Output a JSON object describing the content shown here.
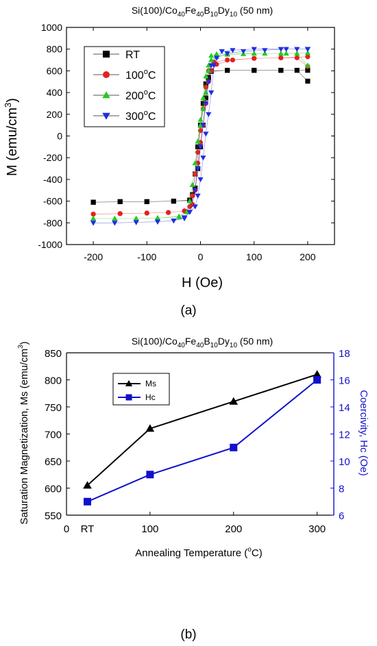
{
  "figure": {
    "panel_a_caption": "(a)",
    "panel_b_caption": "(b)"
  },
  "chart_data": [
    {
      "type": "scatter",
      "title": {
        "base": "Si(100)/Co",
        "sub1": "40",
        "t2": "Fe",
        "sub2": "40",
        "t3": "B",
        "sub3": "10",
        "t4": "Dy",
        "sub4": "10",
        "tail": " (50 nm)"
      },
      "xlabel": "H (Oe)",
      "ylabel": {
        "main": "M",
        "units": "(emu/cm",
        "sup": "3",
        "close": ")"
      },
      "xlim": [
        -250,
        250
      ],
      "ylim": [
        -1000,
        1000
      ],
      "xticks": [
        "-200",
        "-100",
        "0",
        "100",
        "200"
      ],
      "yticks": [
        "1000",
        "800",
        "600",
        "400",
        "200",
        "0",
        "-200",
        "-400",
        "-600",
        "-800",
        "-1000"
      ],
      "legend_position": "top-left",
      "series": [
        {
          "name": "RT",
          "label": "RT",
          "marker": "square",
          "color": "#000000",
          "Ms": 605,
          "Hc": 7,
          "descending": [
            [
              200,
              505
            ],
            [
              180,
              605
            ],
            [
              150,
              605
            ],
            [
              100,
              605
            ],
            [
              50,
              605
            ],
            [
              20,
              600
            ],
            [
              10,
              480
            ],
            [
              5,
              300
            ],
            [
              0,
              100
            ],
            [
              -5,
              -100
            ],
            [
              -10,
              -350
            ],
            [
              -15,
              -540
            ],
            [
              -20,
              -590
            ],
            [
              -50,
              -600
            ],
            [
              -100,
              -605
            ],
            [
              -150,
              -605
            ],
            [
              -200,
              -610
            ]
          ],
          "ascending": [
            [
              -200,
              -610
            ],
            [
              -150,
              -605
            ],
            [
              -100,
              -605
            ],
            [
              -50,
              -600
            ],
            [
              -20,
              -595
            ],
            [
              -10,
              -480
            ],
            [
              -5,
              -300
            ],
            [
              0,
              -100
            ],
            [
              5,
              100
            ],
            [
              10,
              350
            ],
            [
              15,
              540
            ],
            [
              20,
              595
            ],
            [
              50,
              605
            ],
            [
              100,
              605
            ],
            [
              150,
              605
            ],
            [
              200,
              605
            ]
          ]
        },
        {
          "name": "100°C",
          "label": "100",
          "unit": "C",
          "marker": "circle",
          "color": "#e52222",
          "Ms": 710,
          "Hc": 9,
          "descending": [
            [
              200,
              640
            ],
            [
              180,
              720
            ],
            [
              150,
              720
            ],
            [
              100,
              715
            ],
            [
              50,
              700
            ],
            [
              25,
              680
            ],
            [
              15,
              600
            ],
            [
              10,
              450
            ],
            [
              5,
              250
            ],
            [
              0,
              50
            ],
            [
              -5,
              -150
            ],
            [
              -10,
              -350
            ],
            [
              -15,
              -550
            ],
            [
              -20,
              -650
            ],
            [
              -30,
              -690
            ],
            [
              -60,
              -705
            ],
            [
              -100,
              -710
            ],
            [
              -150,
              -715
            ],
            [
              -200,
              -720
            ]
          ],
          "ascending": [
            [
              -200,
              -720
            ],
            [
              -150,
              -715
            ],
            [
              -100,
              -710
            ],
            [
              -60,
              -705
            ],
            [
              -30,
              -690
            ],
            [
              -15,
              -630
            ],
            [
              -10,
              -500
            ],
            [
              -5,
              -250
            ],
            [
              0,
              -60
            ],
            [
              5,
              100
            ],
            [
              10,
              300
            ],
            [
              15,
              500
            ],
            [
              20,
              600
            ],
            [
              30,
              660
            ],
            [
              60,
              700
            ],
            [
              100,
              715
            ],
            [
              150,
              720
            ],
            [
              200,
              730
            ]
          ]
        },
        {
          "name": "200°C",
          "label": "200",
          "unit": "C",
          "marker": "triangle-up",
          "color": "#22cc22",
          "Ms": 760,
          "Hc": 11,
          "descending": [
            [
              200,
              650
            ],
            [
              180,
              760
            ],
            [
              150,
              760
            ],
            [
              100,
              760
            ],
            [
              50,
              760
            ],
            [
              30,
              755
            ],
            [
              20,
              740
            ],
            [
              15,
              600
            ],
            [
              10,
              400
            ],
            [
              5,
              250
            ],
            [
              0,
              100
            ],
            [
              -5,
              -50
            ],
            [
              -10,
              -250
            ],
            [
              -15,
              -450
            ],
            [
              -20,
              -600
            ],
            [
              -25,
              -700
            ],
            [
              -40,
              -740
            ],
            [
              -80,
              -755
            ],
            [
              -120,
              -760
            ],
            [
              -160,
              -760
            ],
            [
              -200,
              -760
            ]
          ],
          "ascending": [
            [
              -200,
              -760
            ],
            [
              -160,
              -760
            ],
            [
              -120,
              -760
            ],
            [
              -80,
              -755
            ],
            [
              -40,
              -745
            ],
            [
              -25,
              -700
            ],
            [
              -20,
              -600
            ],
            [
              -15,
              -450
            ],
            [
              -10,
              -250
            ],
            [
              -5,
              -50
            ],
            [
              0,
              150
            ],
            [
              5,
              350
            ],
            [
              10,
              550
            ],
            [
              15,
              650
            ],
            [
              20,
              700
            ],
            [
              30,
              730
            ],
            [
              50,
              750
            ],
            [
              80,
              755
            ],
            [
              120,
              760
            ],
            [
              160,
              760
            ],
            [
              200,
              765
            ]
          ]
        },
        {
          "name": "300°C",
          "label": "300",
          "unit": "C",
          "marker": "triangle-down",
          "color": "#1f2fe0",
          "Ms": 810,
          "Hc": 16,
          "descending": [
            [
              200,
              800
            ],
            [
              180,
              800
            ],
            [
              150,
              800
            ],
            [
              100,
              800
            ],
            [
              60,
              790
            ],
            [
              40,
              780
            ],
            [
              25,
              650
            ],
            [
              20,
              400
            ],
            [
              15,
              200
            ],
            [
              10,
              20
            ],
            [
              5,
              -200
            ],
            [
              0,
              -400
            ],
            [
              -5,
              -550
            ],
            [
              -10,
              -650
            ],
            [
              -20,
              -700
            ],
            [
              -30,
              -750
            ],
            [
              -50,
              -780
            ],
            [
              -80,
              -790
            ],
            [
              -120,
              -795
            ],
            [
              -160,
              -800
            ],
            [
              -200,
              -800
            ]
          ],
          "ascending": [
            [
              -200,
              -800
            ],
            [
              -160,
              -800
            ],
            [
              -120,
              -795
            ],
            [
              -80,
              -790
            ],
            [
              -50,
              -780
            ],
            [
              -30,
              -760
            ],
            [
              -20,
              -700
            ],
            [
              -10,
              -500
            ],
            [
              -5,
              -300
            ],
            [
              0,
              -100
            ],
            [
              5,
              100
            ],
            [
              10,
              300
            ],
            [
              15,
              500
            ],
            [
              20,
              650
            ],
            [
              30,
              720
            ],
            [
              50,
              760
            ],
            [
              80,
              780
            ],
            [
              120,
              790
            ],
            [
              160,
              800
            ],
            [
              200,
              800
            ]
          ]
        }
      ]
    },
    {
      "type": "line",
      "title": {
        "base": "Si(100)/Co",
        "sub1": "40",
        "t2": "Fe",
        "sub2": "40",
        "t3": "B",
        "sub3": "10",
        "t4": "Dy",
        "sub4": "10",
        "tail": " (50 nm)"
      },
      "xlabel": {
        "main": "Annealing Temperature (",
        "sup": "o",
        "close": "C)"
      },
      "ylabel_left": {
        "main": "Saturation Magnetization, Ms (emu/cm",
        "sup": "3",
        "close": ")"
      },
      "ylabel_right": "Coercivity, Hc (Oe)",
      "xlim": [
        0,
        320
      ],
      "ylim_left": [
        550,
        850
      ],
      "ylim_right": [
        6,
        18
      ],
      "xticks": [
        {
          "value": 0,
          "label": "0"
        },
        {
          "value": 100,
          "label": "100"
        },
        {
          "value": 200,
          "label": "200"
        },
        {
          "value": 300,
          "label": "300"
        }
      ],
      "x_category_label": {
        "value": 25,
        "label": "RT"
      },
      "yticks_left": [
        "550",
        "600",
        "650",
        "700",
        "750",
        "800",
        "850"
      ],
      "yticks_right": [
        "6",
        "8",
        "10",
        "12",
        "14",
        "16",
        "18"
      ],
      "legend_position": "top-left",
      "x": [
        25,
        100,
        200,
        300
      ],
      "series": [
        {
          "name": "Ms",
          "axis": "left",
          "marker": "triangle-up",
          "color": "#000000",
          "values": [
            605,
            710,
            760,
            810
          ]
        },
        {
          "name": "Hc",
          "axis": "right",
          "marker": "square",
          "color": "#1010cc",
          "values": [
            7,
            9,
            11,
            16
          ]
        }
      ]
    }
  ]
}
